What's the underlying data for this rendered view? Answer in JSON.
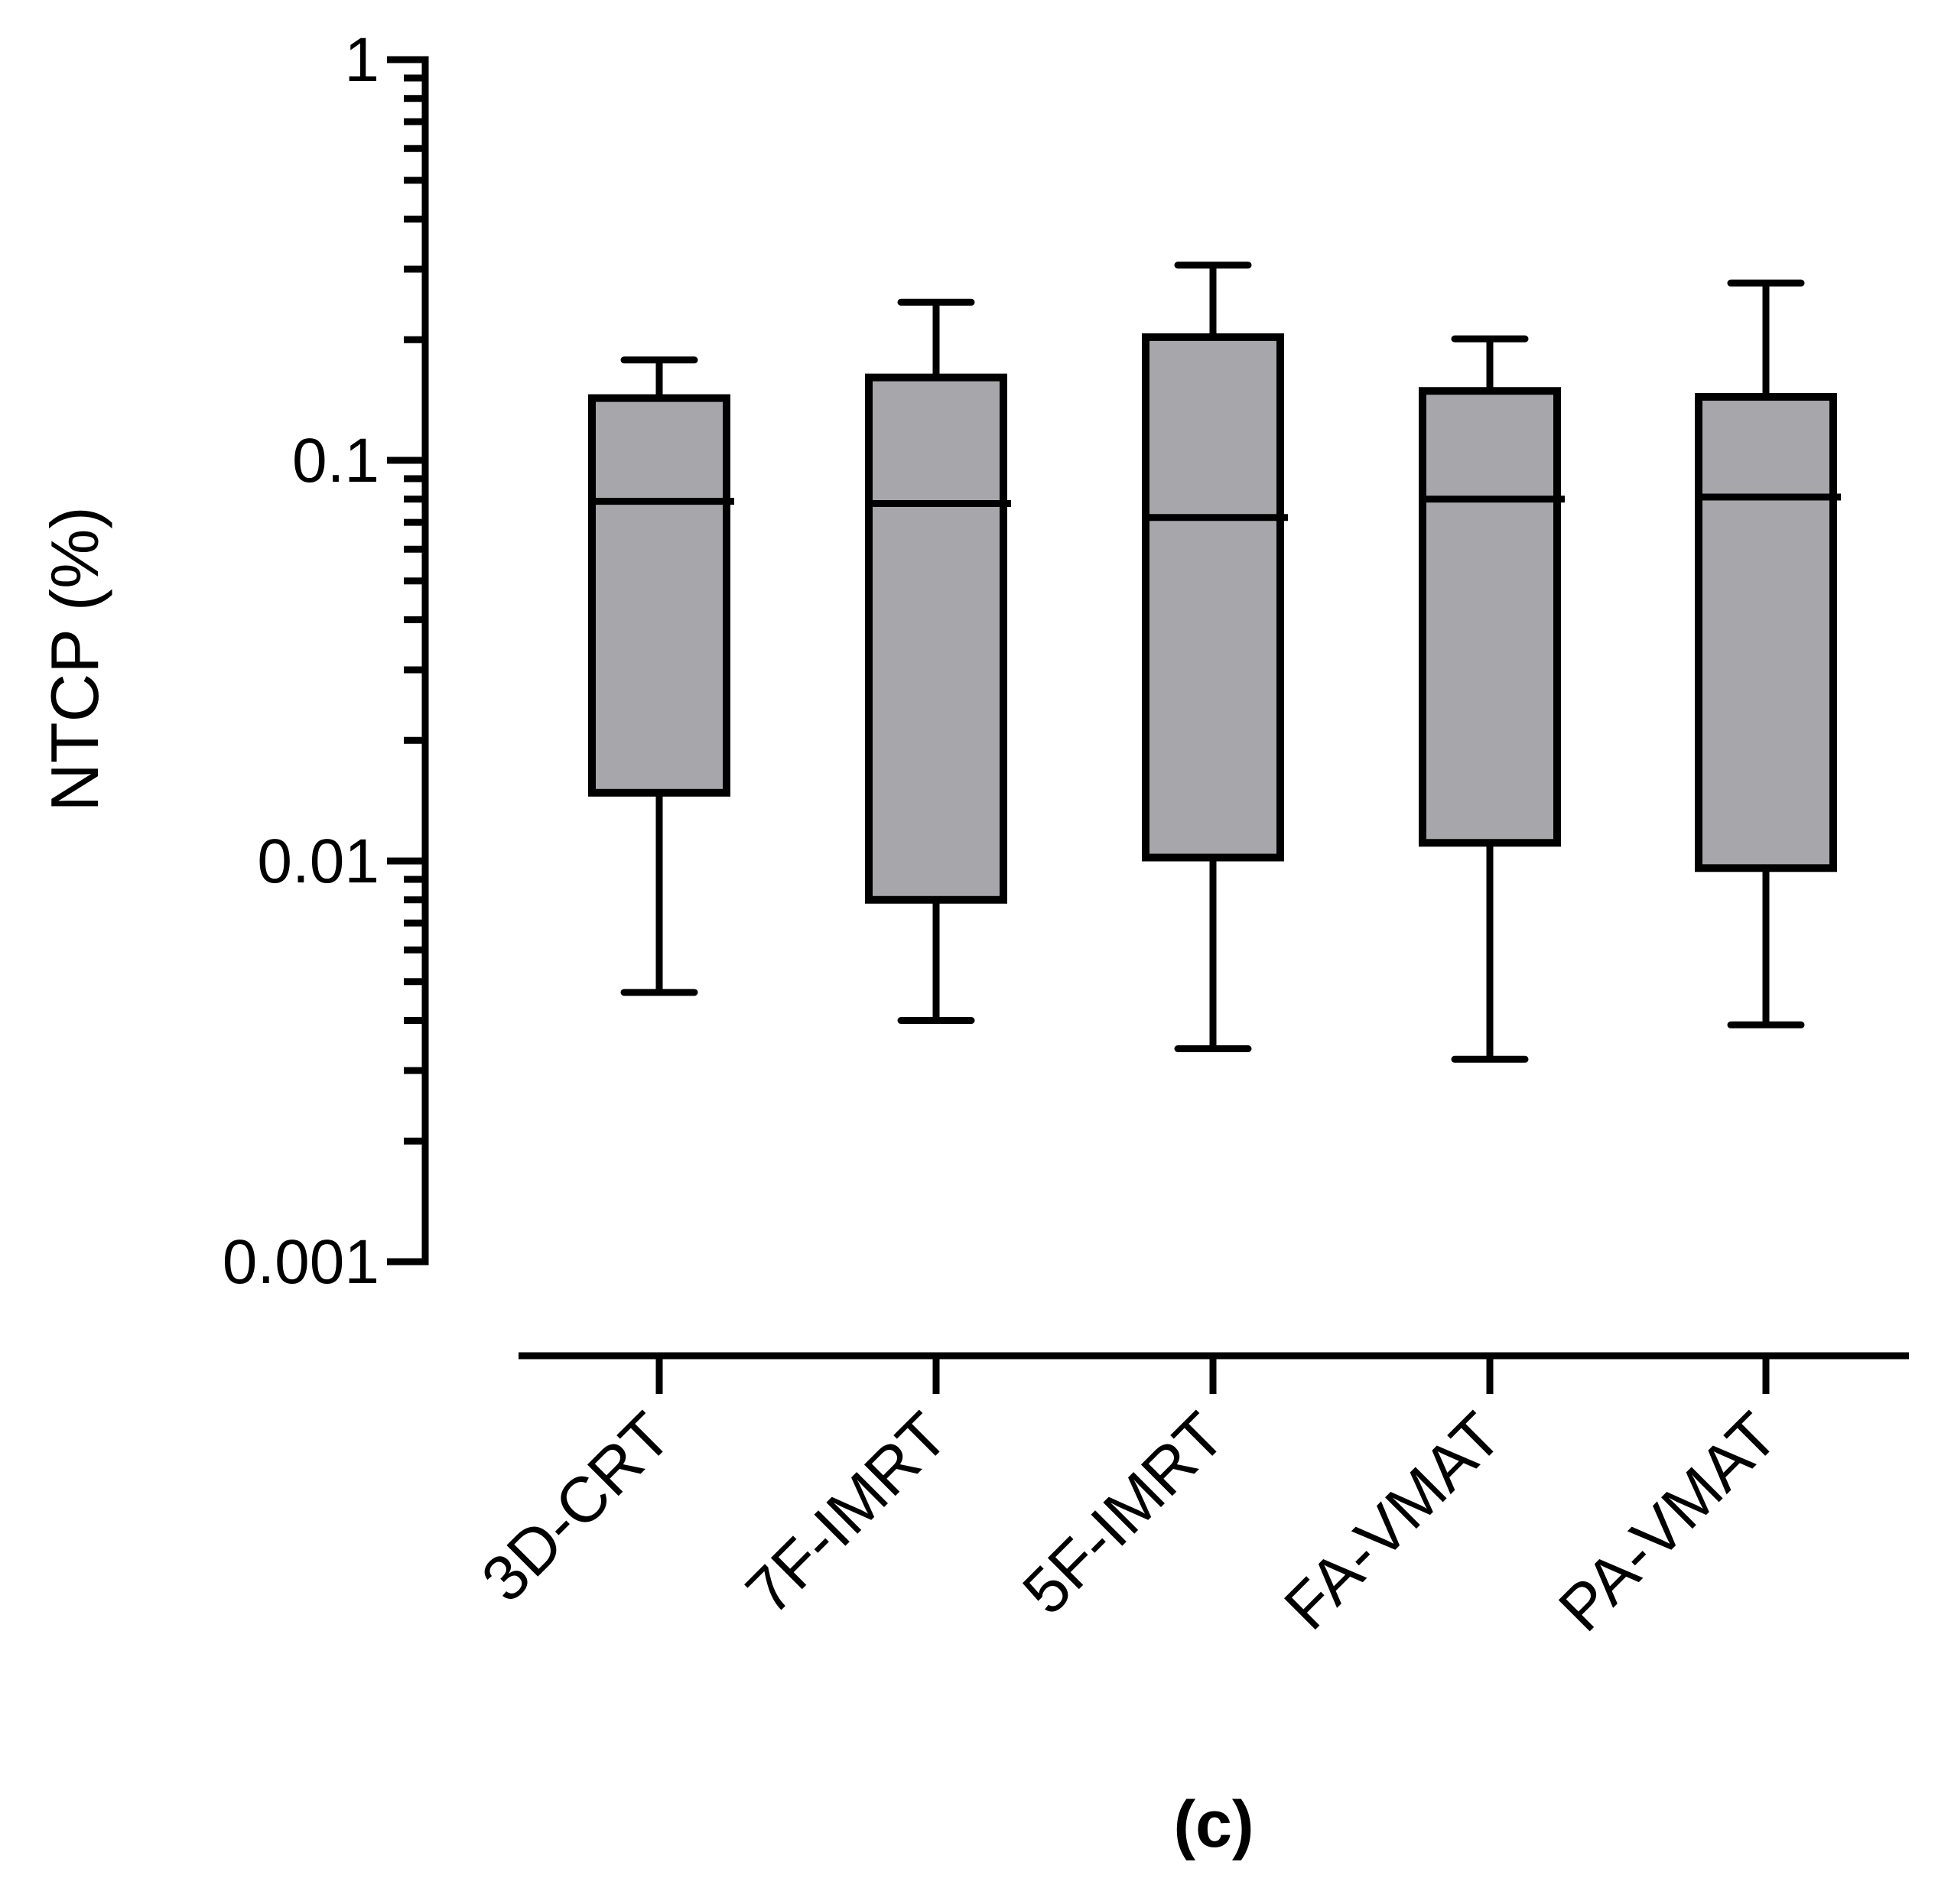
{
  "chart_data": {
    "type": "boxplot",
    "title": "",
    "panel_label": "(c)",
    "ylabel": "NTCP (%)",
    "xlabel": "",
    "yscale": "log",
    "ylim": [
      0.001,
      1
    ],
    "yticks": [
      {
        "value": 0.001,
        "label": "0.001"
      },
      {
        "value": 0.01,
        "label": "0.01"
      },
      {
        "value": 0.1,
        "label": "0.1"
      },
      {
        "value": 1,
        "label": "1"
      }
    ],
    "categories": [
      "3D-CRT",
      "7F-IMRT",
      "5F-IMRT",
      "FA-VMAT",
      "PA-VMAT"
    ],
    "series": [
      {
        "name": "3D-CRT",
        "min": 0.0047,
        "q1": 0.0148,
        "median": 0.079,
        "q3": 0.143,
        "max": 0.178
      },
      {
        "name": "7F-IMRT",
        "min": 0.004,
        "q1": 0.008,
        "median": 0.078,
        "q3": 0.161,
        "max": 0.248
      },
      {
        "name": "5F-IMRT",
        "min": 0.0034,
        "q1": 0.0102,
        "median": 0.072,
        "q3": 0.203,
        "max": 0.307
      },
      {
        "name": "FA-VMAT",
        "min": 0.0032,
        "q1": 0.0111,
        "median": 0.08,
        "q3": 0.149,
        "max": 0.201
      },
      {
        "name": "PA-VMAT",
        "min": 0.0039,
        "q1": 0.0096,
        "median": 0.081,
        "q3": 0.144,
        "max": 0.277
      }
    ],
    "colors": {
      "box_fill": "#a7a6aa",
      "stroke": "#000000"
    },
    "grid": false,
    "legend": "none"
  }
}
